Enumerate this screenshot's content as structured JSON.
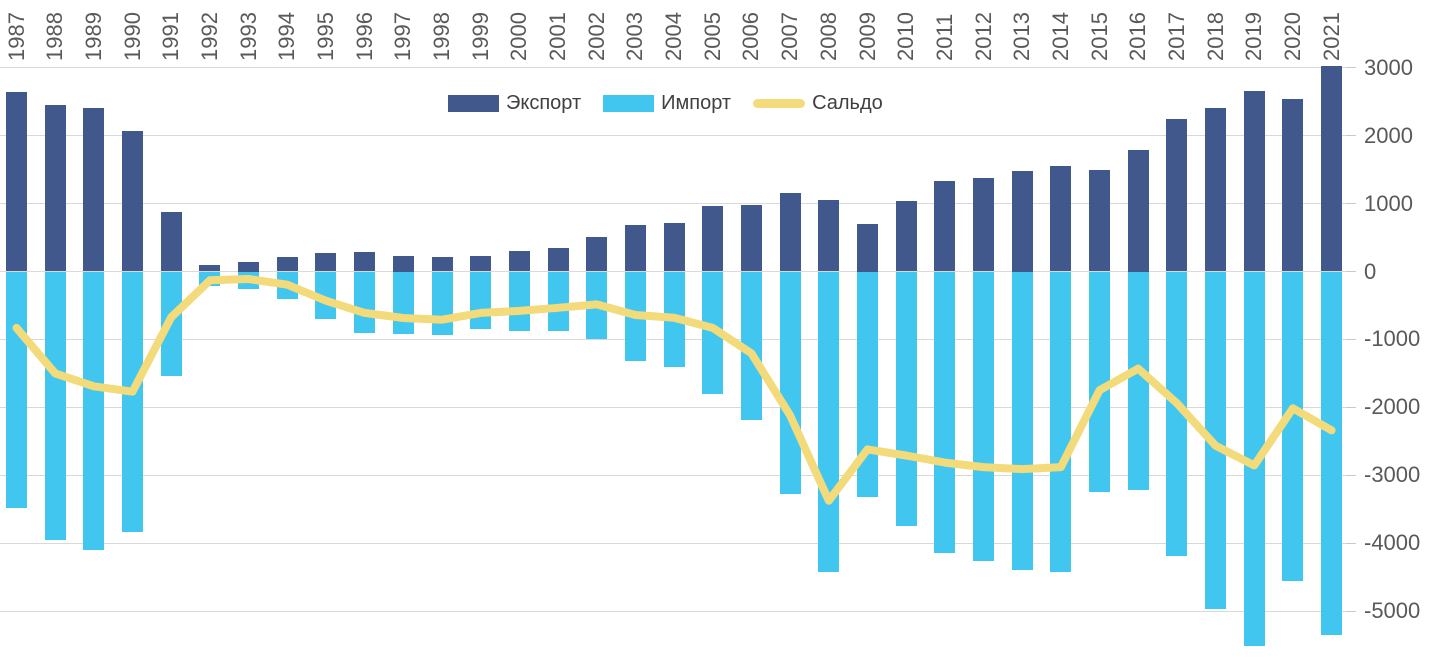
{
  "chart_data": {
    "type": "bar",
    "subtype": "combo-bar-line",
    "title": "",
    "categories": [
      "1987",
      "1988",
      "1989",
      "1990",
      "1991",
      "1992",
      "1993",
      "1994",
      "1995",
      "1996",
      "1997",
      "1998",
      "1999",
      "2000",
      "2001",
      "2002",
      "2003",
      "2004",
      "2005",
      "2006",
      "2007",
      "2008",
      "2009",
      "2010",
      "2011",
      "2012",
      "2013",
      "2014",
      "2015",
      "2016",
      "2017",
      "2018",
      "2019",
      "2020",
      "2021"
    ],
    "series": [
      {
        "name": "Экспорт",
        "type": "bar",
        "color": "#41588C",
        "values": [
          2650,
          2450,
          2410,
          2070,
          870,
          90,
          140,
          215,
          270,
          290,
          235,
          220,
          230,
          300,
          340,
          505,
          680,
          720,
          970,
          985,
          1150,
          1055,
          700,
          1040,
          1330,
          1380,
          1480,
          1550,
          1490,
          1790,
          2245,
          2410,
          2660,
          2545,
          3020
        ]
      },
      {
        "name": "Импорт",
        "type": "bar",
        "color": "#41C6F0",
        "values": [
          -3480,
          -3950,
          -4100,
          -3840,
          -1545,
          -220,
          -250,
          -410,
          -700,
          -900,
          -920,
          -930,
          -840,
          -880,
          -875,
          -990,
          -1320,
          -1400,
          -1800,
          -2190,
          -3270,
          -4430,
          -3320,
          -3750,
          -4145,
          -4260,
          -4390,
          -4430,
          -3240,
          -3220,
          -4185,
          -4975,
          -5515,
          -4560,
          -5360
        ]
      },
      {
        "name": "Сальдо",
        "type": "line",
        "color": "#F3DA7A",
        "values": [
          -830,
          -1500,
          -1690,
          -1770,
          -675,
          -130,
          -110,
          -195,
          -430,
          -610,
          -685,
          -710,
          -610,
          -580,
          -535,
          -485,
          -640,
          -680,
          -830,
          -1205,
          -2120,
          -3375,
          -2620,
          -2710,
          -2815,
          -2880,
          -2910,
          -2880,
          -1750,
          -1430,
          -1940,
          -2565,
          -2855,
          -2015,
          -2340
        ]
      }
    ],
    "y_axis": {
      "side": "right",
      "ticks": [
        3000,
        2000,
        1000,
        0,
        -1000,
        -2000,
        -3000,
        -4000,
        -5000
      ],
      "tick_labels": [
        "3000",
        "2000",
        "1000",
        "0",
        "-1000",
        "-2000",
        "-3000",
        "-4000",
        "-5000"
      ]
    },
    "x_axis": {
      "position": "top",
      "label_rotation_deg": 90
    },
    "legend": {
      "position": "top-center",
      "entries": [
        "Экспорт",
        "Импорт",
        "Сальдо"
      ]
    },
    "grid": true
  },
  "colors": {
    "export_bar": "#41588C",
    "import_bar": "#41C6F0",
    "saldo_line": "#F3DA7A",
    "gridline": "#D9D9D9",
    "axis_text": "#595959",
    "legend_text": "#404040",
    "background": "#FFFFFF"
  }
}
